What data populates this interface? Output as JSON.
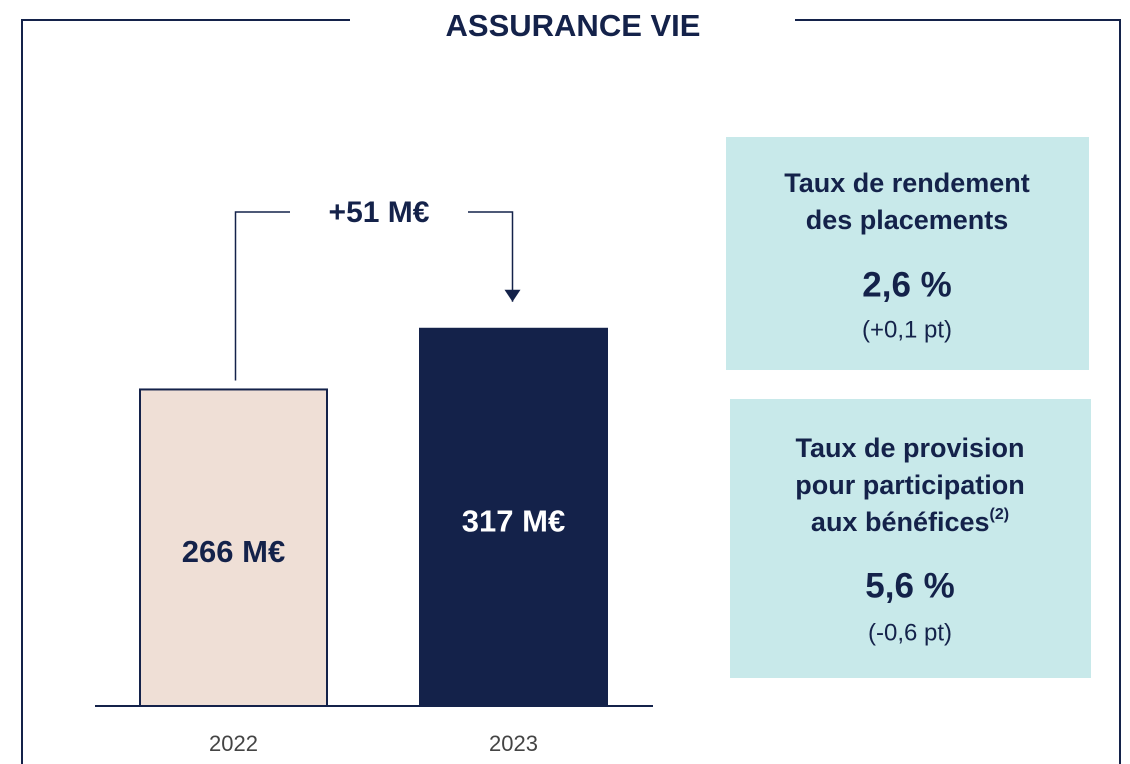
{
  "title": "ASSURANCE VIE",
  "chart_data": {
    "type": "bar",
    "categories": [
      "2022",
      "2023"
    ],
    "values": [
      266,
      317
    ],
    "value_labels": [
      "266 M€",
      "317 M€"
    ],
    "colors": [
      "#efdfd6",
      "#14224a"
    ],
    "delta": {
      "value": 51,
      "label": "+51 M€"
    }
  },
  "kpis": [
    {
      "title_lines": [
        "Taux de rendement",
        "des placements"
      ],
      "value": "2,6 %",
      "change": "(+0,1 pt)"
    },
    {
      "title_lines": [
        "Taux de provision",
        "pour participation",
        "aux bénéfices"
      ],
      "footnote": "(2)",
      "value": "5,6 %",
      "change": "(-0,6 pt)"
    }
  ]
}
